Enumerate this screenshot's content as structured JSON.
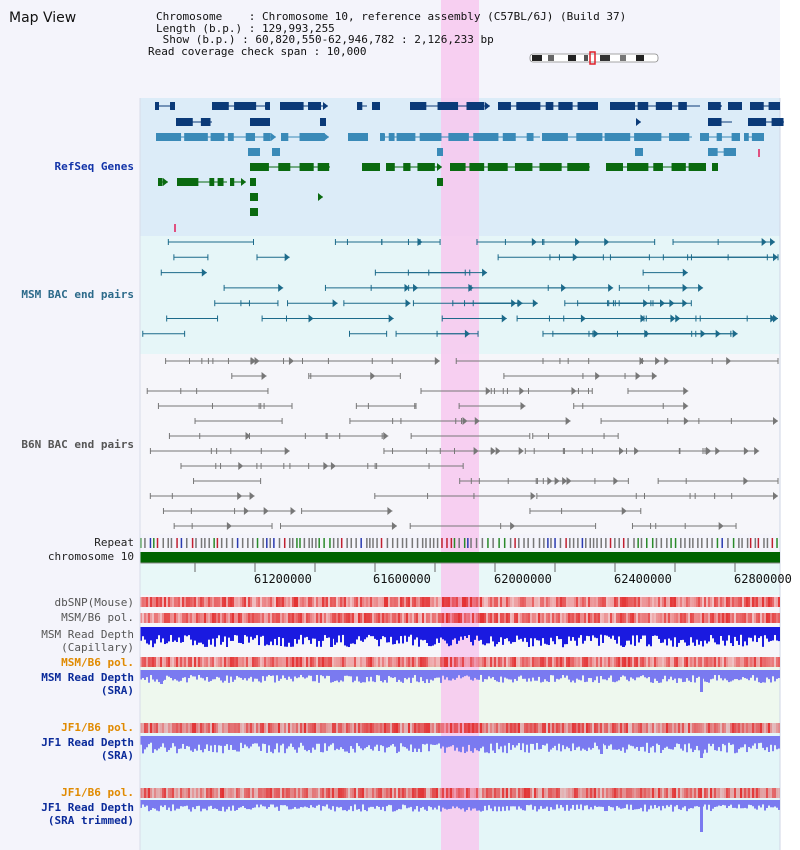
{
  "header": {
    "title": "Map View",
    "chromosome_line": "Chromosome    : Chromosome 10, reference assembly (C57BL/6J) (Build 37)",
    "length_line": "Length (b.p.) : 129,993,255",
    "show_line": " Show (b.p.) : 60,820,550-62,946,782 : 2,126,233 bp",
    "coverage_line": "Read coverage check span : 10,000"
  },
  "tracks": {
    "refseq": "RefSeq Genes",
    "msm_bac": "MSM BAC end pairs",
    "b6n_bac": "B6N BAC end pairs",
    "repeat": "Repeat",
    "chromosome": "chromosome 10",
    "dbsnp": "dbSNP(Mouse)",
    "msm_b6_pol_a": "MSM/B6 pol.",
    "msm_read_depth_cap": "MSM Read Depth\n(Capillary)",
    "msm_b6_pol_b": "MSM/B6 pol.",
    "msm_read_depth_sra": "MSM Read Depth\n(SRA)",
    "jf1_b6_pol_a": "JF1/B6 pol.",
    "jf1_read_depth_sra": "JF1 Read Depth\n(SRA)",
    "jf1_b6_pol_b": "JF1/B6 pol.",
    "jf1_read_depth_trim": "JF1 Read Depth\n(SRA trimmed)"
  },
  "axis_ticks": [
    "61200000",
    "61600000",
    "62000000",
    "62400000",
    "62800000"
  ],
  "colors": {
    "refseq_dark": "#0b3a78",
    "refseq_light": "#3a8ab8",
    "refseq_green": "#0a6a10",
    "bac_teal": "#1c6a8a",
    "bac_gray": "#777777",
    "chromosome_green": "#006400",
    "highlight": "#f7c8ef",
    "depth_blue": "#1a1ae0",
    "depth_light": "#7a7af0",
    "snp_red": "#e23a3a"
  },
  "icons": [
    "chromosome-ideogram-icon"
  ]
}
